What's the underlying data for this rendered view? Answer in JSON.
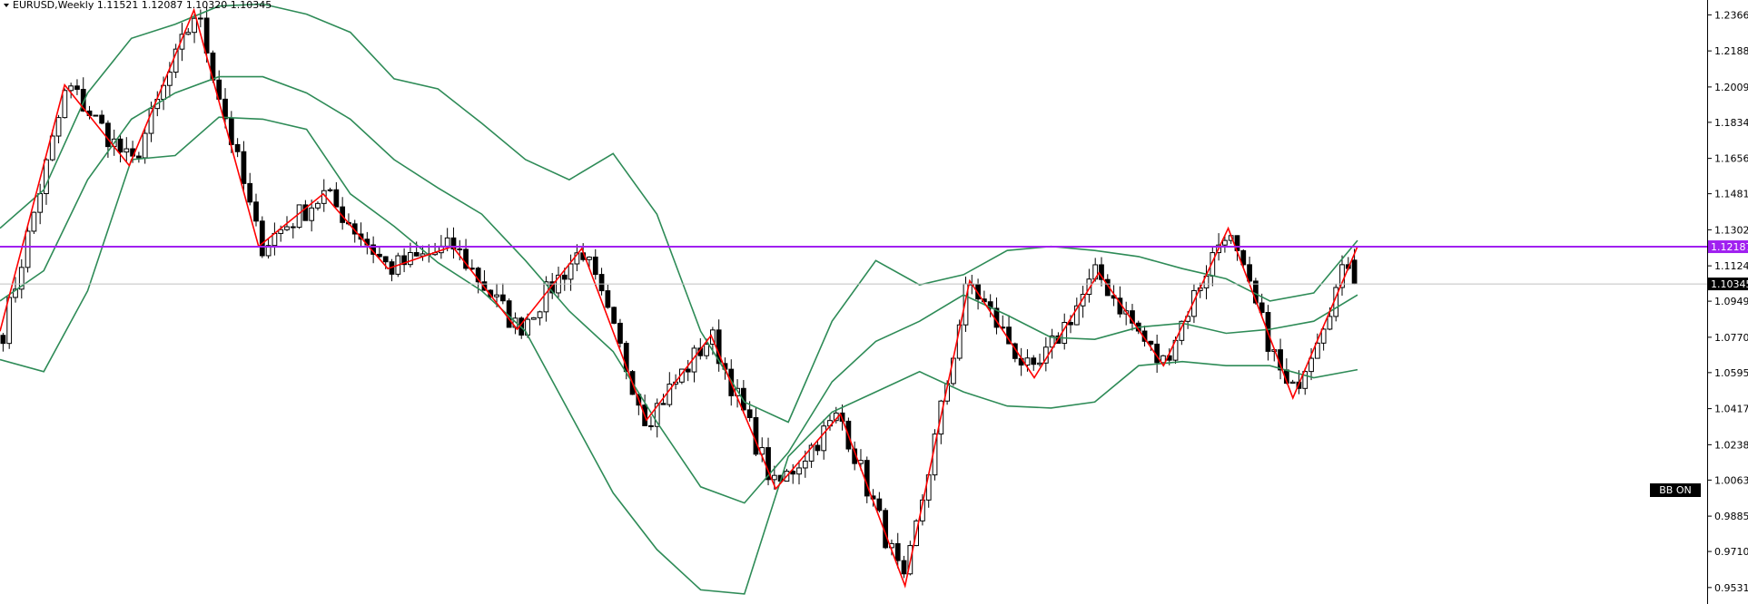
{
  "header": {
    "symbol_line": "EURUSD,Weekly  1.11521 1.12087 1.10320 1.10345"
  },
  "indicator_badge": "BB ON",
  "chart_data": {
    "type": "candlestick",
    "symbol": "EURUSD",
    "timeframe": "Weekly",
    "ohlc_last": {
      "open": 1.11521,
      "high": 1.12087,
      "low": 1.1032,
      "close": 1.10345
    },
    "ylim": [
      0.945,
      1.244
    ],
    "yticks": [
      "1.23665",
      "1.21880",
      "1.20095",
      "1.18345",
      "1.16560",
      "1.14810",
      "1.13025",
      "1.11240",
      "1.09490",
      "1.07705",
      "1.05955",
      "1.04170",
      "1.02385",
      "1.00635",
      "0.98850",
      "0.97100",
      "0.95315"
    ],
    "price_level_label": "1.12187",
    "price_level": 1.12187,
    "current_price_label": "1.10345",
    "current_price": 1.10345,
    "colors": {
      "bullish": "#ffffff",
      "bearish": "#000000",
      "bollinger": "#2e8b57",
      "zigzag": "#ff0000",
      "level_line": "#a020f0",
      "current_line": "#c0c0c0"
    },
    "zigzag": [
      1.08,
      1.202,
      1.162,
      1.239,
      1.122,
      1.148,
      1.111,
      1.122,
      1.081,
      1.121,
      1.036,
      1.078,
      1.002,
      1.039,
      0.954,
      1.105,
      1.057,
      1.109,
      1.063,
      1.131,
      1.047,
      1.122
    ],
    "bollinger": {
      "upper": [
        1.131,
        1.15,
        1.198,
        1.225,
        1.232,
        1.241,
        1.242,
        1.237,
        1.228,
        1.205,
        1.2,
        1.183,
        1.165,
        1.155,
        1.168,
        1.138,
        1.08,
        1.045,
        1.035,
        1.085,
        1.115,
        1.103,
        1.108,
        1.12,
        1.122,
        1.12,
        1.117,
        1.111,
        1.106,
        1.095,
        1.099,
        1.125
      ],
      "middle": [
        1.095,
        1.11,
        1.155,
        1.185,
        1.198,
        1.206,
        1.206,
        1.198,
        1.185,
        1.165,
        1.151,
        1.138,
        1.115,
        1.09,
        1.07,
        1.035,
        1.003,
        0.995,
        1.02,
        1.055,
        1.075,
        1.085,
        1.098,
        1.088,
        1.077,
        1.076,
        1.082,
        1.084,
        1.079,
        1.081,
        1.085,
        1.098
      ],
      "lower": [
        1.066,
        1.06,
        1.1,
        1.165,
        1.167,
        1.186,
        1.185,
        1.18,
        1.148,
        1.132,
        1.114,
        1.1,
        1.08,
        1.04,
        1.0,
        0.972,
        0.952,
        0.95,
        1.018,
        1.04,
        1.05,
        1.06,
        1.05,
        1.043,
        1.042,
        1.045,
        1.063,
        1.065,
        1.063,
        1.063,
        1.057,
        1.061
      ]
    }
  }
}
